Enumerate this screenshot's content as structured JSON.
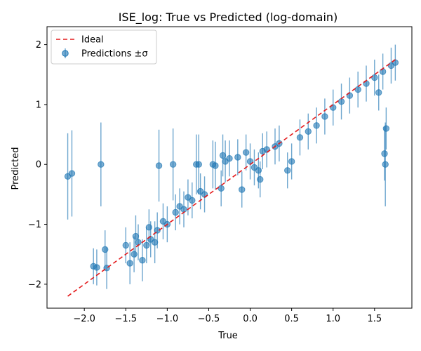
{
  "colors": {
    "series": "#1f77b4",
    "ideal": "#e41a1c",
    "axis": "#000000",
    "legend_border": "#cccccc"
  },
  "chart_data": {
    "type": "scatter",
    "title": "ISE_log: True vs Predicted (log-domain)",
    "xlabel": "True",
    "ylabel": "Predicted",
    "xlim": [
      -2.45,
      1.95
    ],
    "ylim": [
      -2.4,
      2.3
    ],
    "xticks": [
      -2.0,
      -1.5,
      -1.0,
      -0.5,
      0.0,
      0.5,
      1.0,
      1.5
    ],
    "xtick_labels": [
      "−2.0",
      "−1.5",
      "−1.0",
      "−0.5",
      "0.0",
      "0.5",
      "1.0",
      "1.5"
    ],
    "yticks": [
      -2,
      -1,
      0,
      1,
      2
    ],
    "ytick_labels": [
      "−2",
      "−1",
      "0",
      "1",
      "2"
    ],
    "grid": false,
    "legend_position": "top-left",
    "legend": [
      {
        "label": "Ideal",
        "style": "dashed-line"
      },
      {
        "label": "Predictions ±σ",
        "style": "errorbar-marker"
      }
    ],
    "ideal_line": {
      "x": [
        -2.2,
        1.75
      ],
      "y": [
        -2.2,
        1.75
      ]
    },
    "series": [
      {
        "name": "Predictions ±σ",
        "points": [
          {
            "x": -2.2,
            "y": -0.2,
            "err": 0.72
          },
          {
            "x": -2.15,
            "y": -0.15,
            "err": 0.72
          },
          {
            "x": -1.8,
            "y": 0.0,
            "err": 0.7
          },
          {
            "x": -1.89,
            "y": -1.7,
            "err": 0.3
          },
          {
            "x": -1.85,
            "y": -1.72,
            "err": 0.3
          },
          {
            "x": -1.75,
            "y": -1.42,
            "err": 0.32
          },
          {
            "x": -1.73,
            "y": -1.73,
            "err": 0.35
          },
          {
            "x": -1.5,
            "y": -1.35,
            "err": 0.3
          },
          {
            "x": -1.45,
            "y": -1.65,
            "err": 0.35
          },
          {
            "x": -1.4,
            "y": -1.5,
            "err": 0.3
          },
          {
            "x": -1.38,
            "y": -1.2,
            "err": 0.35
          },
          {
            "x": -1.35,
            "y": -1.3,
            "err": 0.3
          },
          {
            "x": -1.3,
            "y": -1.6,
            "err": 0.35
          },
          {
            "x": -1.25,
            "y": -1.35,
            "err": 0.3
          },
          {
            "x": -1.22,
            "y": -1.05,
            "err": 0.3
          },
          {
            "x": -1.2,
            "y": -1.25,
            "err": 0.3
          },
          {
            "x": -1.15,
            "y": -1.3,
            "err": 0.35
          },
          {
            "x": -1.12,
            "y": -1.1,
            "err": 0.3
          },
          {
            "x": -1.1,
            "y": -0.02,
            "err": 0.6
          },
          {
            "x": -1.05,
            "y": -0.95,
            "err": 0.3
          },
          {
            "x": -1.0,
            "y": -1.0,
            "err": 0.3
          },
          {
            "x": -0.93,
            "y": 0.0,
            "err": 0.6
          },
          {
            "x": -0.9,
            "y": -0.8,
            "err": 0.3
          },
          {
            "x": -0.85,
            "y": -0.7,
            "err": 0.3
          },
          {
            "x": -0.8,
            "y": -0.75,
            "err": 0.3
          },
          {
            "x": -0.75,
            "y": -0.55,
            "err": 0.3
          },
          {
            "x": -0.7,
            "y": -0.6,
            "err": 0.3
          },
          {
            "x": -0.65,
            "y": 0.0,
            "err": 0.5
          },
          {
            "x": -0.62,
            "y": 0.0,
            "err": 0.5
          },
          {
            "x": -0.6,
            "y": -0.45,
            "err": 0.3
          },
          {
            "x": -0.55,
            "y": -0.5,
            "err": 0.3
          },
          {
            "x": -0.45,
            "y": 0.0,
            "err": 0.4
          },
          {
            "x": -0.42,
            "y": -0.02,
            "err": 0.4
          },
          {
            "x": -0.35,
            "y": -0.4,
            "err": 0.3
          },
          {
            "x": -0.33,
            "y": 0.15,
            "err": 0.35
          },
          {
            "x": -0.3,
            "y": 0.05,
            "err": 0.35
          },
          {
            "x": -0.25,
            "y": 0.1,
            "err": 0.3
          },
          {
            "x": -0.15,
            "y": 0.12,
            "err": 0.3
          },
          {
            "x": -0.1,
            "y": -0.42,
            "err": 0.3
          },
          {
            "x": -0.05,
            "y": 0.2,
            "err": 0.3
          },
          {
            "x": 0.0,
            "y": 0.05,
            "err": 0.3
          },
          {
            "x": 0.05,
            "y": -0.05,
            "err": 0.3
          },
          {
            "x": 0.1,
            "y": -0.1,
            "err": 0.3
          },
          {
            "x": 0.12,
            "y": -0.25,
            "err": 0.3
          },
          {
            "x": 0.15,
            "y": 0.22,
            "err": 0.3
          },
          {
            "x": 0.2,
            "y": 0.25,
            "err": 0.3
          },
          {
            "x": 0.3,
            "y": 0.3,
            "err": 0.3
          },
          {
            "x": 0.35,
            "y": 0.35,
            "err": 0.3
          },
          {
            "x": 0.45,
            "y": -0.1,
            "err": 0.3
          },
          {
            "x": 0.5,
            "y": 0.05,
            "err": 0.3
          },
          {
            "x": 0.6,
            "y": 0.45,
            "err": 0.3
          },
          {
            "x": 0.7,
            "y": 0.55,
            "err": 0.3
          },
          {
            "x": 0.8,
            "y": 0.65,
            "err": 0.3
          },
          {
            "x": 0.9,
            "y": 0.8,
            "err": 0.3
          },
          {
            "x": 1.0,
            "y": 0.95,
            "err": 0.3
          },
          {
            "x": 1.1,
            "y": 1.05,
            "err": 0.3
          },
          {
            "x": 1.2,
            "y": 1.15,
            "err": 0.3
          },
          {
            "x": 1.3,
            "y": 1.25,
            "err": 0.3
          },
          {
            "x": 1.4,
            "y": 1.35,
            "err": 0.3
          },
          {
            "x": 1.5,
            "y": 1.45,
            "err": 0.3
          },
          {
            "x": 1.55,
            "y": 1.2,
            "err": 0.3
          },
          {
            "x": 1.6,
            "y": 1.55,
            "err": 0.3
          },
          {
            "x": 1.62,
            "y": 0.18,
            "err": 0.45
          },
          {
            "x": 1.63,
            "y": 0.0,
            "err": 0.7
          },
          {
            "x": 1.64,
            "y": 0.6,
            "err": 0.35
          },
          {
            "x": 1.7,
            "y": 1.65,
            "err": 0.3
          },
          {
            "x": 1.75,
            "y": 1.7,
            "err": 0.3
          }
        ]
      }
    ]
  }
}
